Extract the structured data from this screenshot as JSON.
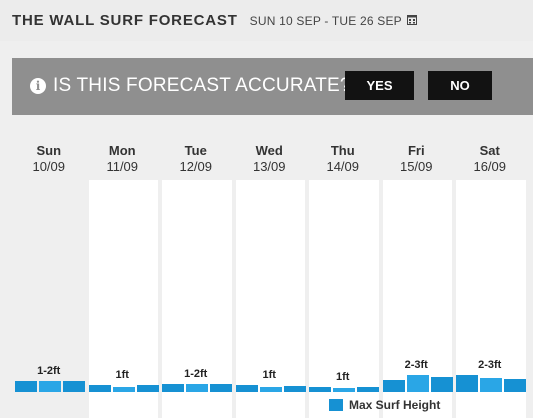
{
  "header": {
    "title": "THE WALL SURF FORECAST",
    "date_range": "SUN 10 SEP - TUE 26 SEP",
    "calendar_icon": "calendar-icon"
  },
  "poll": {
    "icon": "info-icon",
    "question": "IS THIS FORECAST ACCURATE?",
    "yes_label": "YES",
    "no_label": "NO"
  },
  "days": [
    {
      "name": "Sun",
      "date": "10/09",
      "label": "1-2ft"
    },
    {
      "name": "Mon",
      "date": "11/09",
      "label": "1ft"
    },
    {
      "name": "Tue",
      "date": "12/09",
      "label": "1-2ft"
    },
    {
      "name": "Wed",
      "date": "13/09",
      "label": "1ft"
    },
    {
      "name": "Thu",
      "date": "14/09",
      "label": "1ft"
    },
    {
      "name": "Fri",
      "date": "15/09",
      "label": "2-3ft"
    },
    {
      "name": "Sat",
      "date": "16/09",
      "label": "2-3ft"
    }
  ],
  "chart_data": {
    "type": "bar",
    "title": "",
    "series": [
      {
        "name": "Max Surf Height",
        "values": [
          [
            1.5,
            1.5,
            1.4
          ],
          [
            0.9,
            0.7,
            0.9
          ],
          [
            1.1,
            1.1,
            1.0
          ],
          [
            0.9,
            0.7,
            0.8
          ],
          [
            0.6,
            0.5,
            0.6
          ],
          [
            1.6,
            2.2,
            2.0
          ],
          [
            2.2,
            1.9,
            1.7
          ]
        ]
      }
    ],
    "legend": {
      "label": "Max Surf Height",
      "color": "#1691d3",
      "placement": "bottom"
    }
  },
  "colors": {
    "bar": "#1691d3",
    "bar_light": "#2aa6e6",
    "poll_bg": "#8f8f8f"
  }
}
